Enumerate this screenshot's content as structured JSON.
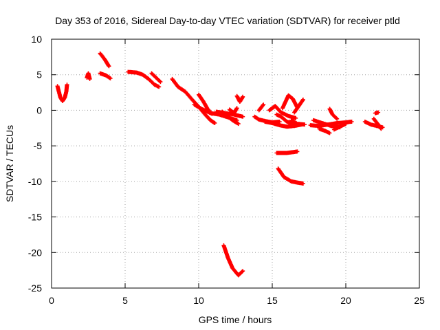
{
  "chart_data": {
    "type": "scatter",
    "title": "Day 353 of 2016, Sidereal Day-to-day VTEC variation (SDTVAR) for receiver ptld",
    "xlabel": "GPS time / hours",
    "ylabel": "SDTVAR / TECUs",
    "xlim": [
      0,
      25
    ],
    "ylim": [
      -25,
      10
    ],
    "xticks": [
      0,
      5,
      10,
      15,
      20,
      25
    ],
    "yticks": [
      10,
      5,
      0,
      -5,
      -10,
      -15,
      -20,
      -25
    ],
    "grid": true,
    "series_color": "#ff0000",
    "series": [
      {
        "name": "s1",
        "points": [
          [
            0.4,
            3.4
          ],
          [
            0.5,
            2.6
          ],
          [
            0.6,
            1.8
          ],
          [
            0.75,
            1.3
          ],
          [
            0.9,
            1.8
          ],
          [
            1.0,
            2.6
          ],
          [
            1.05,
            3.6
          ]
        ]
      },
      {
        "name": "s2",
        "points": [
          [
            2.4,
            4.6
          ],
          [
            2.5,
            5.2
          ],
          [
            2.6,
            4.4
          ]
        ]
      },
      {
        "name": "s3",
        "points": [
          [
            3.3,
            8.0
          ],
          [
            3.6,
            7.2
          ],
          [
            3.9,
            6.2
          ]
        ]
      },
      {
        "name": "s4",
        "points": [
          [
            3.3,
            5.2
          ],
          [
            3.7,
            4.9
          ],
          [
            4.0,
            4.5
          ]
        ]
      },
      {
        "name": "s5",
        "points": [
          [
            5.2,
            5.4
          ],
          [
            5.8,
            5.3
          ],
          [
            6.2,
            5.0
          ],
          [
            6.6,
            4.4
          ],
          [
            7.0,
            3.6
          ],
          [
            7.3,
            3.3
          ]
        ]
      },
      {
        "name": "s6",
        "points": [
          [
            6.8,
            5.2
          ],
          [
            7.1,
            4.6
          ],
          [
            7.4,
            4.0
          ]
        ]
      },
      {
        "name": "s7",
        "points": [
          [
            8.2,
            4.4
          ],
          [
            8.6,
            3.3
          ],
          [
            9.1,
            2.6
          ],
          [
            9.6,
            1.4
          ],
          [
            10.0,
            0.5
          ],
          [
            10.4,
            -0.5
          ],
          [
            10.8,
            -1.4
          ],
          [
            11.1,
            -1.8
          ]
        ]
      },
      {
        "name": "s8",
        "points": [
          [
            9.7,
            0.8
          ],
          [
            10.2,
            0.2
          ],
          [
            10.8,
            -0.4
          ],
          [
            11.4,
            -0.6
          ],
          [
            12.0,
            -1.0
          ],
          [
            12.6,
            -1.4
          ]
        ]
      },
      {
        "name": "s9",
        "points": [
          [
            10.0,
            2.2
          ],
          [
            10.3,
            1.3
          ],
          [
            10.6,
            0.2
          ],
          [
            10.9,
            -0.5
          ]
        ]
      },
      {
        "name": "s10",
        "points": [
          [
            11.2,
            -0.2
          ],
          [
            11.8,
            -0.4
          ],
          [
            12.4,
            -0.6
          ],
          [
            13.0,
            -0.9
          ]
        ]
      },
      {
        "name": "s11",
        "points": [
          [
            12.1,
            0.1
          ],
          [
            12.4,
            -0.4
          ],
          [
            12.6,
            0.3
          ]
        ]
      },
      {
        "name": "s12",
        "points": [
          [
            12.6,
            2.0
          ],
          [
            12.8,
            1.2
          ],
          [
            13.0,
            1.9
          ]
        ]
      },
      {
        "name": "s13",
        "points": [
          [
            11.6,
            -0.2
          ],
          [
            11.9,
            -0.7
          ],
          [
            12.3,
            -1.4
          ],
          [
            12.7,
            -1.9
          ]
        ]
      },
      {
        "name": "s14",
        "points": [
          [
            11.7,
            -19.0
          ],
          [
            12.0,
            -20.8
          ],
          [
            12.3,
            -22.2
          ],
          [
            12.7,
            -23.2
          ],
          [
            13.0,
            -22.6
          ]
        ]
      },
      {
        "name": "s15",
        "points": [
          [
            13.8,
            -0.9
          ],
          [
            14.1,
            -1.3
          ],
          [
            14.5,
            -1.5
          ],
          [
            15.0,
            -1.7
          ],
          [
            15.5,
            -1.6
          ]
        ]
      },
      {
        "name": "s16",
        "points": [
          [
            14.1,
            0.0
          ],
          [
            14.4,
            0.8
          ]
        ]
      },
      {
        "name": "s17",
        "points": [
          [
            14.5,
            -1.6
          ],
          [
            15.0,
            -1.8
          ],
          [
            15.5,
            -2.1
          ],
          [
            16.0,
            -2.3
          ],
          [
            16.5,
            -2.2
          ],
          [
            17.0,
            -2.0
          ]
        ]
      },
      {
        "name": "s18",
        "points": [
          [
            14.8,
            0.0
          ],
          [
            15.2,
            0.6
          ],
          [
            15.6,
            -0.3
          ],
          [
            16.1,
            -0.8
          ],
          [
            16.6,
            -1.1
          ]
        ]
      },
      {
        "name": "s19",
        "points": [
          [
            15.3,
            -0.6
          ],
          [
            15.6,
            -0.9
          ],
          [
            16.0,
            -1.6
          ],
          [
            16.4,
            -1.9
          ]
        ]
      },
      {
        "name": "s20",
        "points": [
          [
            15.7,
            0.3
          ],
          [
            15.9,
            1.2
          ],
          [
            16.1,
            2.1
          ],
          [
            16.4,
            1.6
          ],
          [
            16.7,
            0.4
          ]
        ]
      },
      {
        "name": "s21",
        "points": [
          [
            16.5,
            -0.3
          ],
          [
            16.8,
            0.6
          ],
          [
            17.1,
            1.5
          ]
        ]
      },
      {
        "name": "s22",
        "points": [
          [
            16.3,
            -1.4
          ],
          [
            16.7,
            -1.9
          ],
          [
            17.2,
            -2.0
          ]
        ]
      },
      {
        "name": "s23",
        "points": [
          [
            15.3,
            -6.0
          ],
          [
            16.0,
            -6.0
          ],
          [
            16.7,
            -5.8
          ]
        ]
      },
      {
        "name": "s24",
        "points": [
          [
            15.4,
            -8.2
          ],
          [
            15.8,
            -9.4
          ],
          [
            16.3,
            -10.0
          ],
          [
            16.8,
            -10.2
          ],
          [
            17.1,
            -10.3
          ]
        ]
      },
      {
        "name": "s25",
        "points": [
          [
            17.6,
            -2.1
          ],
          [
            18.2,
            -2.2
          ],
          [
            18.8,
            -2.0
          ],
          [
            19.4,
            -1.8
          ],
          [
            20.0,
            -1.7
          ],
          [
            20.4,
            -1.6
          ]
        ]
      },
      {
        "name": "s26",
        "points": [
          [
            17.8,
            -1.4
          ],
          [
            18.4,
            -1.8
          ],
          [
            19.0,
            -2.2
          ],
          [
            19.6,
            -2.4
          ]
        ]
      },
      {
        "name": "s27",
        "points": [
          [
            18.2,
            -2.6
          ],
          [
            18.6,
            -2.9
          ],
          [
            18.9,
            -3.2
          ]
        ]
      },
      {
        "name": "s28",
        "points": [
          [
            18.9,
            0.2
          ],
          [
            19.1,
            -0.6
          ],
          [
            19.4,
            -1.2
          ]
        ]
      },
      {
        "name": "s29",
        "points": [
          [
            19.2,
            -2.7
          ],
          [
            19.6,
            -2.3
          ],
          [
            20.0,
            -1.9
          ]
        ]
      },
      {
        "name": "s30",
        "points": [
          [
            21.3,
            -1.6
          ],
          [
            21.7,
            -2.0
          ],
          [
            22.1,
            -2.2
          ],
          [
            22.5,
            -2.4
          ]
        ]
      },
      {
        "name": "s31",
        "points": [
          [
            21.9,
            -1.2
          ],
          [
            22.2,
            -2.0
          ],
          [
            22.4,
            -2.6
          ]
        ]
      },
      {
        "name": "s32",
        "points": [
          [
            22.0,
            -0.4
          ],
          [
            22.2,
            -0.3
          ]
        ]
      }
    ]
  }
}
